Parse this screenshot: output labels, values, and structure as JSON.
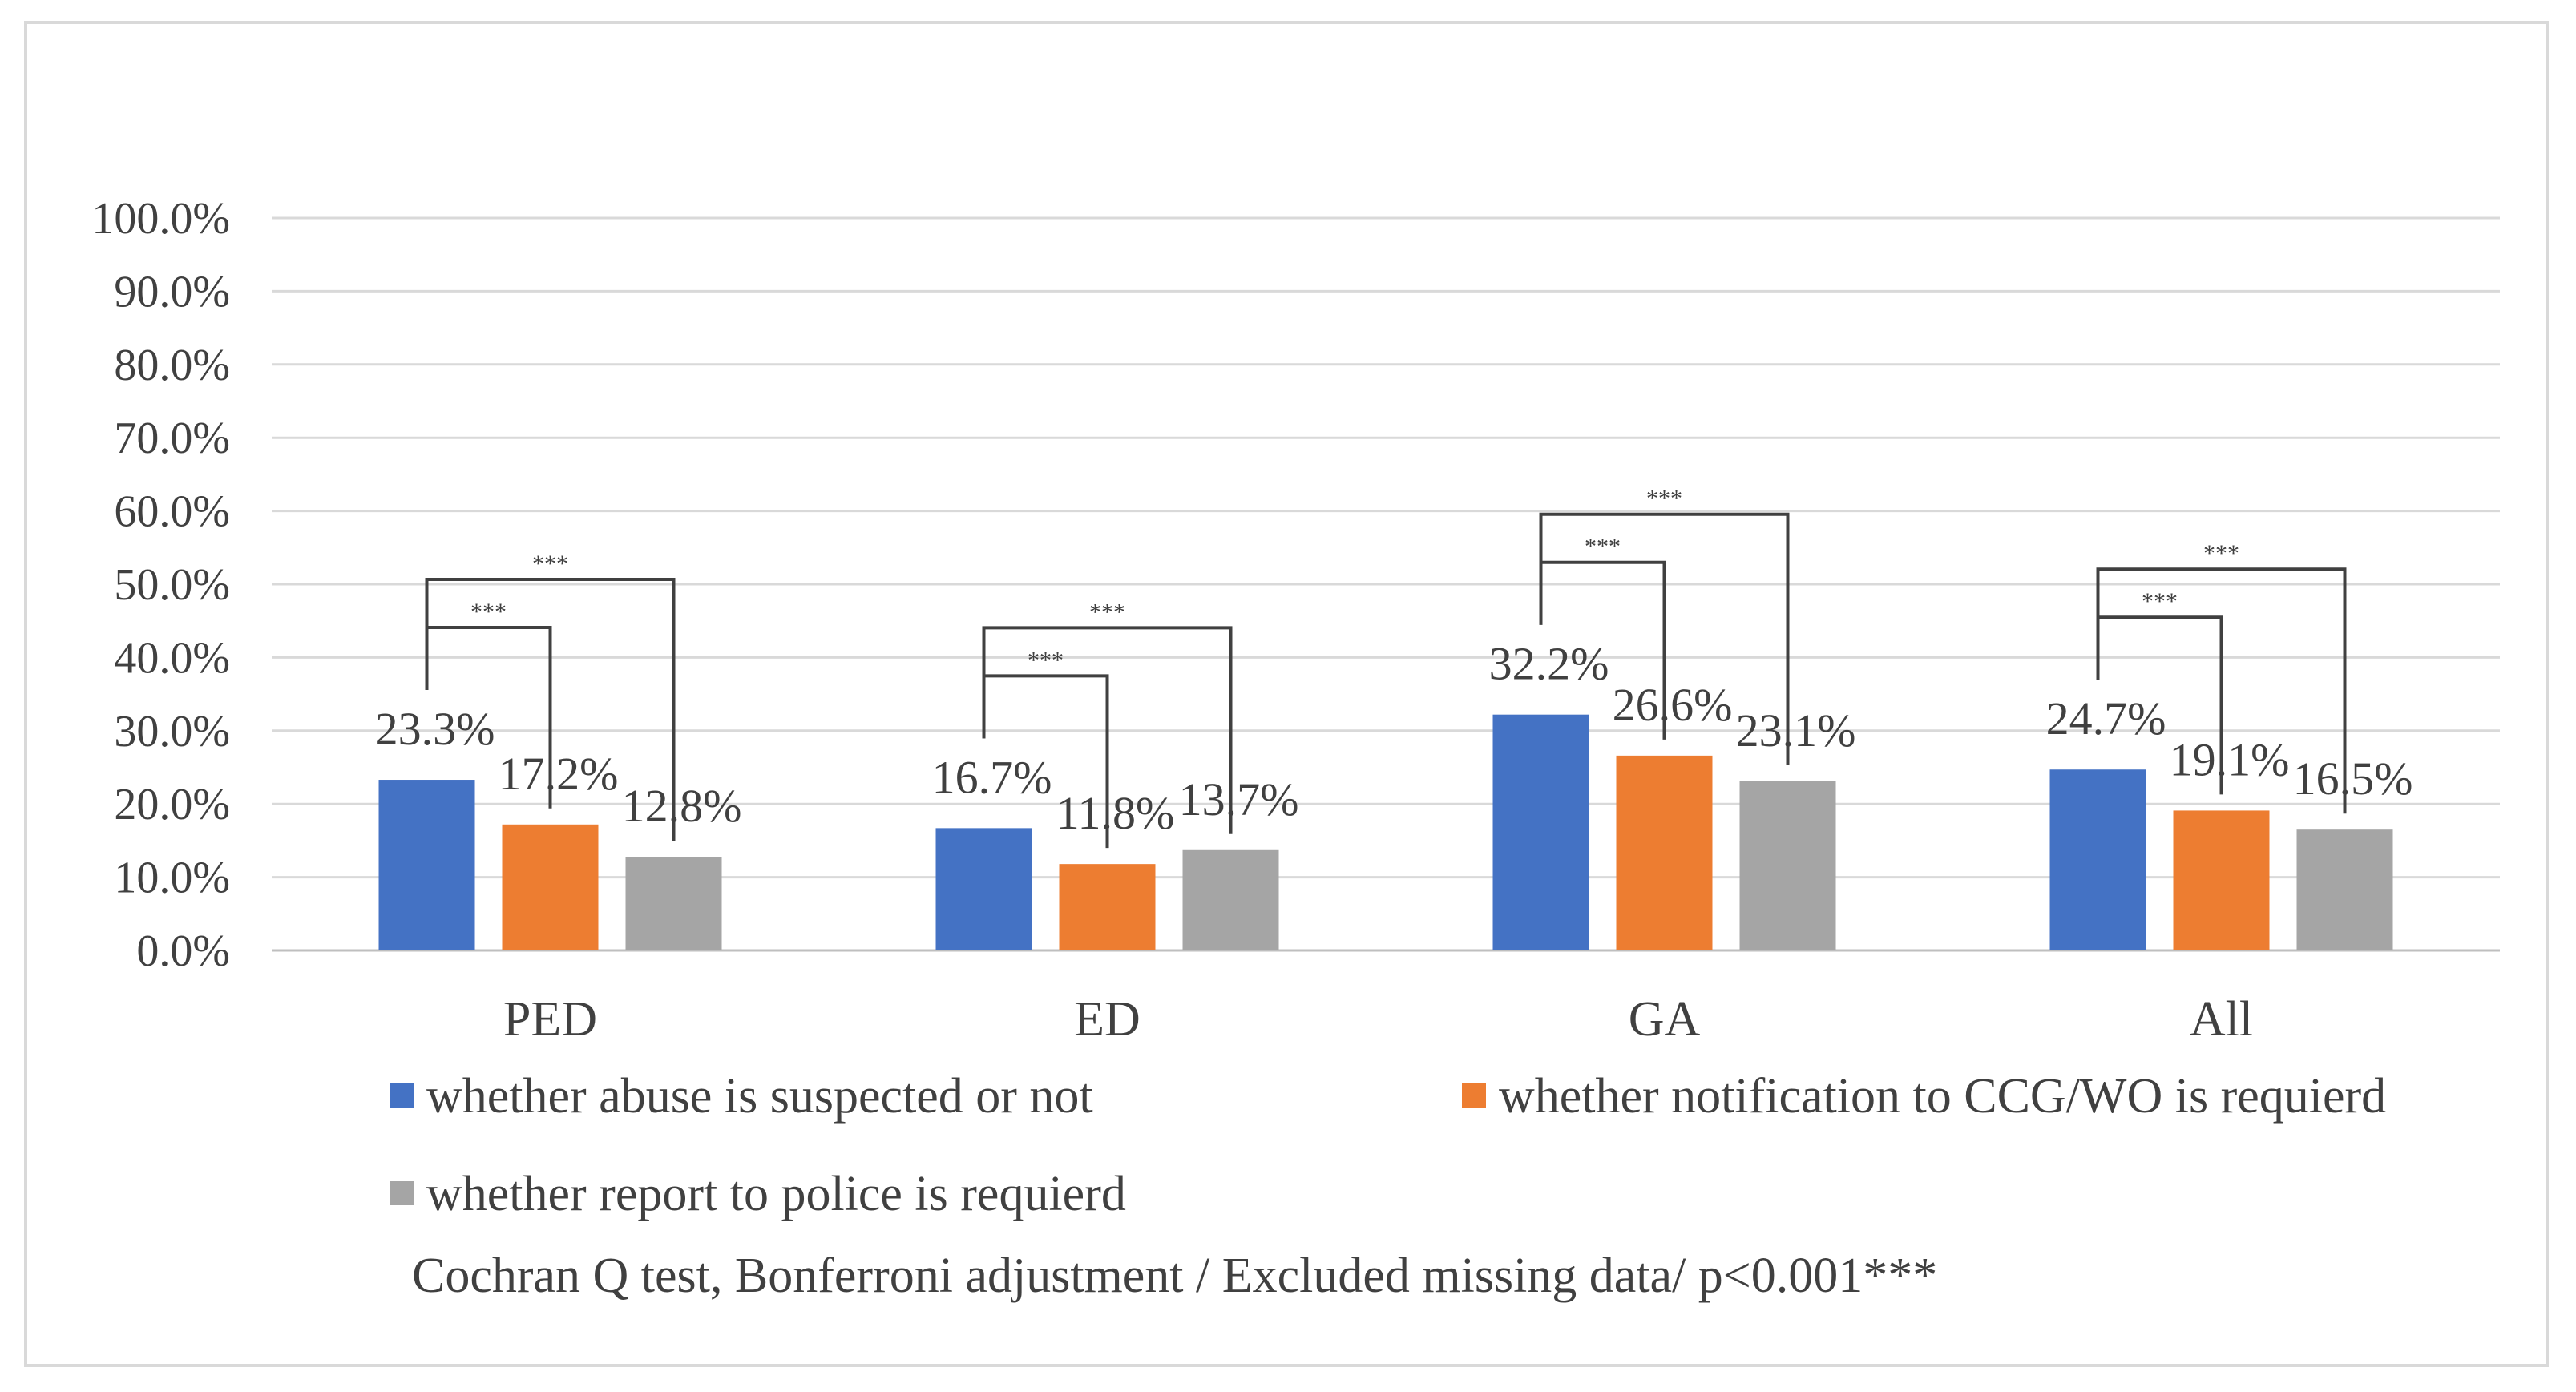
{
  "chart_data": {
    "type": "bar",
    "categories": [
      "PED",
      "ED",
      "GA",
      "All"
    ],
    "series": [
      {
        "name": "whether abuse is suspected or not",
        "color": "#4472c4",
        "values": [
          23.3,
          16.7,
          32.2,
          24.7
        ],
        "labels": [
          "23.3%",
          "16.7%",
          "32.2%",
          "24.7%"
        ]
      },
      {
        "name": "whether notification to CCG/WO is requierd",
        "color": "#ed7d31",
        "values": [
          17.2,
          11.8,
          26.6,
          19.1
        ],
        "labels": [
          "17.2%",
          "11.8%",
          "26.6%",
          "19.1%"
        ]
      },
      {
        "name": "whether report to police is requierd",
        "color": "#a5a5a5",
        "values": [
          12.8,
          13.7,
          23.1,
          16.5
        ],
        "labels": [
          "12.8%",
          "13.7%",
          "23.1%",
          "16.5%"
        ]
      }
    ],
    "ylim": [
      0,
      100
    ],
    "yticks": [
      "0.0%",
      "10.0%",
      "20.0%",
      "30.0%",
      "40.0%",
      "50.0%",
      "60.0%",
      "70.0%",
      "80.0%",
      "90.0%",
      "100.0%"
    ],
    "grid": true,
    "legend_position": "bottom",
    "significance": [
      {
        "category": "PED",
        "comparisons": [
          {
            "from": 0,
            "to": 1,
            "label": "***"
          },
          {
            "from": 0,
            "to": 2,
            "label": "***"
          }
        ]
      },
      {
        "category": "ED",
        "comparisons": [
          {
            "from": 0,
            "to": 1,
            "label": "***"
          },
          {
            "from": 0,
            "to": 2,
            "label": "***"
          }
        ]
      },
      {
        "category": "GA",
        "comparisons": [
          {
            "from": 0,
            "to": 1,
            "label": "***"
          },
          {
            "from": 0,
            "to": 2,
            "label": "***"
          }
        ]
      },
      {
        "category": "All",
        "comparisons": [
          {
            "from": 0,
            "to": 1,
            "label": "***"
          },
          {
            "from": 0,
            "to": 2,
            "label": "***"
          }
        ]
      }
    ],
    "note": "Cochran Q test, Bonferroni adjustment / Excluded missing data/ p<0.001***"
  }
}
